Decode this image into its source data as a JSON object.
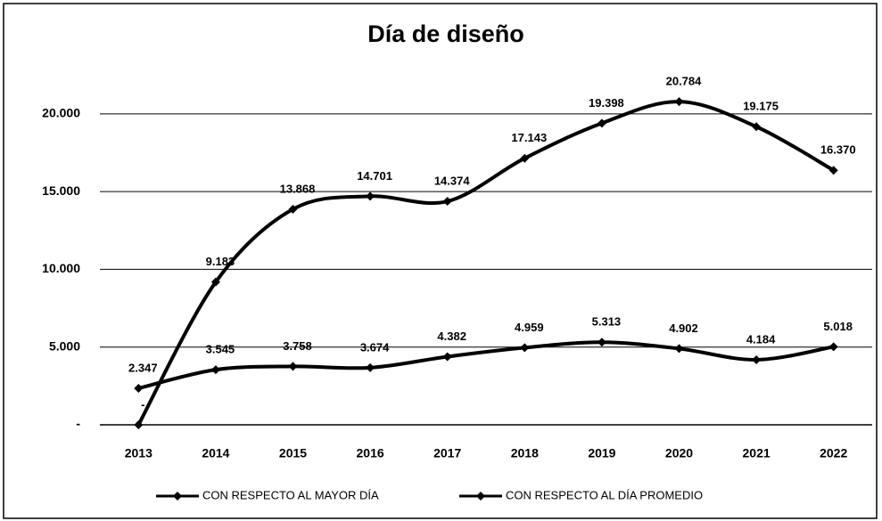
{
  "chart_data": {
    "type": "line",
    "title": "Día de diseño",
    "categories": [
      "2013",
      "2014",
      "2015",
      "2016",
      "2017",
      "2018",
      "2019",
      "2020",
      "2021",
      "2022"
    ],
    "series": [
      {
        "name": "CON RESPECTO AL MAYOR DÍA",
        "color": "#000000",
        "values": [
          0,
          9183,
          13868,
          14701,
          14374,
          17143,
          19398,
          20784,
          19175,
          16370
        ],
        "value_labels": [
          "-",
          "9.183",
          "13.868",
          "14.701",
          "14.374",
          "17.143",
          "19.398",
          "20.784",
          "19.175",
          "16.370"
        ]
      },
      {
        "name": "CON RESPECTO AL DÍA PROMEDIO",
        "color": "#000000",
        "values": [
          2347,
          3545,
          3758,
          3674,
          4382,
          4959,
          5313,
          4902,
          4184,
          5018
        ],
        "value_labels": [
          "2.347",
          "3.545",
          "3.758",
          "3.674",
          "4.382",
          "4.959",
          "5.313",
          "4.902",
          "4.184",
          "5.018"
        ]
      }
    ],
    "ylim": [
      0,
      24000
    ],
    "yticks": [
      {
        "value": 0,
        "label": "-"
      },
      {
        "value": 5000,
        "label": "5.000"
      },
      {
        "value": 10000,
        "label": "10.000"
      },
      {
        "value": 15000,
        "label": "15.000"
      },
      {
        "value": 20000,
        "label": "20.000"
      }
    ],
    "grid": true,
    "legend": "bottom"
  }
}
